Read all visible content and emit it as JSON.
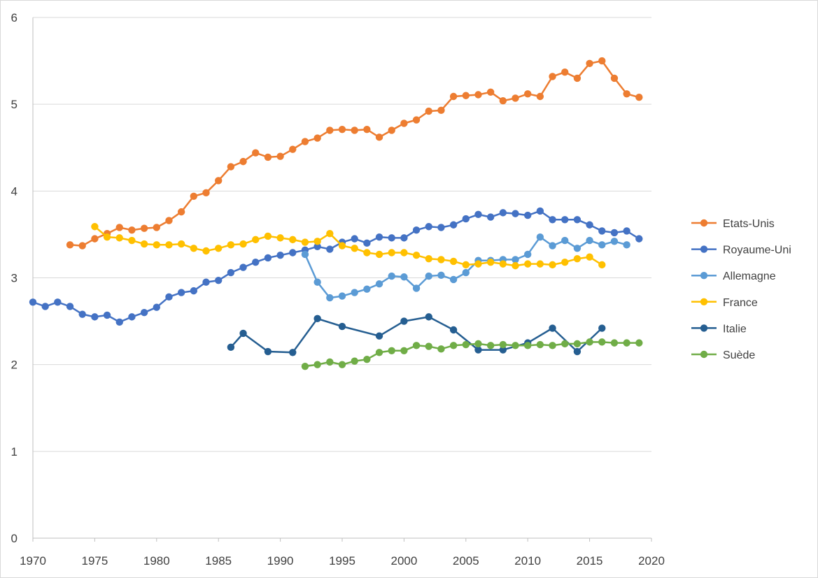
{
  "chart_data": {
    "type": "line",
    "title": "",
    "xlabel": "",
    "ylabel": "",
    "xlim": [
      1970,
      2020
    ],
    "ylim": [
      0,
      6
    ],
    "xticks": [
      1970,
      1975,
      1980,
      1985,
      1990,
      1995,
      2000,
      2005,
      2010,
      2015,
      2020
    ],
    "yticks": [
      0,
      1,
      2,
      3,
      4,
      5,
      6
    ],
    "grid": "horizontal",
    "legend": "right",
    "series": [
      {
        "name": "Etats-Unis",
        "color": "#ED7D31",
        "x": [
          1973,
          1974,
          1975,
          1976,
          1977,
          1978,
          1979,
          1980,
          1981,
          1982,
          1983,
          1984,
          1985,
          1986,
          1987,
          1988,
          1989,
          1990,
          1991,
          1992,
          1993,
          1994,
          1995,
          1996,
          1997,
          1998,
          1999,
          2000,
          2001,
          2002,
          2003,
          2004,
          2005,
          2006,
          2007,
          2008,
          2009,
          2010,
          2011,
          2012,
          2013,
          2014,
          2015,
          2016,
          2017,
          2018,
          2019
        ],
        "y": [
          3.38,
          3.37,
          3.45,
          3.51,
          3.58,
          3.55,
          3.57,
          3.58,
          3.66,
          3.76,
          3.94,
          3.98,
          4.12,
          4.28,
          4.34,
          4.44,
          4.39,
          4.4,
          4.48,
          4.57,
          4.61,
          4.7,
          4.71,
          4.7,
          4.71,
          4.62,
          4.7,
          4.78,
          4.82,
          4.92,
          4.93,
          5.09,
          5.1,
          5.11,
          5.14,
          5.04,
          5.07,
          5.12,
          5.09,
          5.32,
          5.37,
          5.3,
          5.47,
          5.5,
          5.3,
          5.12,
          5.08
        ]
      },
      {
        "name": "Royaume-Uni",
        "color": "#4472C4",
        "x": [
          1970,
          1971,
          1972,
          1973,
          1974,
          1975,
          1976,
          1977,
          1978,
          1979,
          1980,
          1981,
          1982,
          1983,
          1984,
          1985,
          1986,
          1987,
          1988,
          1989,
          1990,
          1991,
          1992,
          1993,
          1994,
          1995,
          1996,
          1997,
          1998,
          1999,
          2000,
          2001,
          2002,
          2003,
          2004,
          2005,
          2006,
          2007,
          2008,
          2009,
          2010,
          2011,
          2012,
          2013,
          2014,
          2015,
          2016,
          2017,
          2018,
          2019
        ],
        "y": [
          2.72,
          2.67,
          2.72,
          2.67,
          2.58,
          2.55,
          2.57,
          2.49,
          2.55,
          2.6,
          2.66,
          2.78,
          2.83,
          2.85,
          2.95,
          2.97,
          3.06,
          3.12,
          3.18,
          3.23,
          3.26,
          3.29,
          3.32,
          3.36,
          3.33,
          3.41,
          3.45,
          3.4,
          3.47,
          3.46,
          3.46,
          3.55,
          3.59,
          3.58,
          3.61,
          3.68,
          3.73,
          3.7,
          3.75,
          3.74,
          3.72,
          3.77,
          3.67,
          3.67,
          3.67,
          3.61,
          3.54,
          3.52,
          3.54,
          3.45
        ]
      },
      {
        "name": "Allemagne",
        "color": "#5B9BD5",
        "x": [
          1992,
          1993,
          1994,
          1995,
          1996,
          1997,
          1998,
          1999,
          2000,
          2001,
          2002,
          2003,
          2004,
          2005,
          2006,
          2007,
          2008,
          2009,
          2010,
          2011,
          2012,
          2013,
          2014,
          2015,
          2016,
          2017,
          2018
        ],
        "y": [
          3.27,
          2.95,
          2.77,
          2.79,
          2.83,
          2.87,
          2.93,
          3.02,
          3.01,
          2.88,
          3.02,
          3.03,
          2.98,
          3.06,
          3.2,
          3.2,
          3.21,
          3.21,
          3.27,
          3.47,
          3.37,
          3.43,
          3.34,
          3.43,
          3.38,
          3.42,
          3.38
        ]
      },
      {
        "name": "France",
        "color": "#FFC000",
        "x": [
          1975,
          1976,
          1977,
          1978,
          1979,
          1980,
          1981,
          1982,
          1983,
          1984,
          1985,
          1986,
          1987,
          1988,
          1989,
          1990,
          1991,
          1992,
          1993,
          1994,
          1995,
          1996,
          1997,
          1998,
          1999,
          2000,
          2001,
          2002,
          2003,
          2004,
          2005,
          2006,
          2007,
          2008,
          2009,
          2010,
          2011,
          2012,
          2013,
          2014,
          2015,
          2016
        ],
        "y": [
          3.59,
          3.47,
          3.46,
          3.43,
          3.39,
          3.38,
          3.38,
          3.39,
          3.34,
          3.31,
          3.34,
          3.38,
          3.39,
          3.44,
          3.48,
          3.46,
          3.44,
          3.41,
          3.42,
          3.51,
          3.37,
          3.34,
          3.29,
          3.27,
          3.29,
          3.29,
          3.26,
          3.22,
          3.21,
          3.19,
          3.15,
          3.16,
          3.18,
          3.16,
          3.14,
          3.16,
          3.16,
          3.15,
          3.18,
          3.22,
          3.24,
          3.15
        ]
      },
      {
        "name": "Italie",
        "color": "#255E91",
        "x": [
          1986,
          1987,
          1989,
          1991,
          1993,
          1995,
          1998,
          2000,
          2002,
          2004,
          2006,
          2008,
          2010,
          2012,
          2014,
          2016
        ],
        "y": [
          2.2,
          2.36,
          2.15,
          2.14,
          2.53,
          2.44,
          2.33,
          2.5,
          2.55,
          2.4,
          2.17,
          2.17,
          2.25,
          2.42,
          2.15,
          2.42
        ]
      },
      {
        "name": "Suède",
        "color": "#70AD47",
        "x": [
          1992,
          1993,
          1994,
          1995,
          1996,
          1997,
          1998,
          1999,
          2000,
          2001,
          2002,
          2003,
          2004,
          2005,
          2006,
          2007,
          2008,
          2009,
          2010,
          2011,
          2012,
          2013,
          2014,
          2015,
          2016,
          2017,
          2018,
          2019
        ],
        "y": [
          1.98,
          2.0,
          2.03,
          2.0,
          2.04,
          2.06,
          2.14,
          2.16,
          2.16,
          2.22,
          2.21,
          2.18,
          2.22,
          2.23,
          2.24,
          2.22,
          2.23,
          2.22,
          2.22,
          2.23,
          2.22,
          2.24,
          2.24,
          2.26,
          2.26,
          2.25,
          2.25,
          2.25
        ]
      }
    ]
  }
}
